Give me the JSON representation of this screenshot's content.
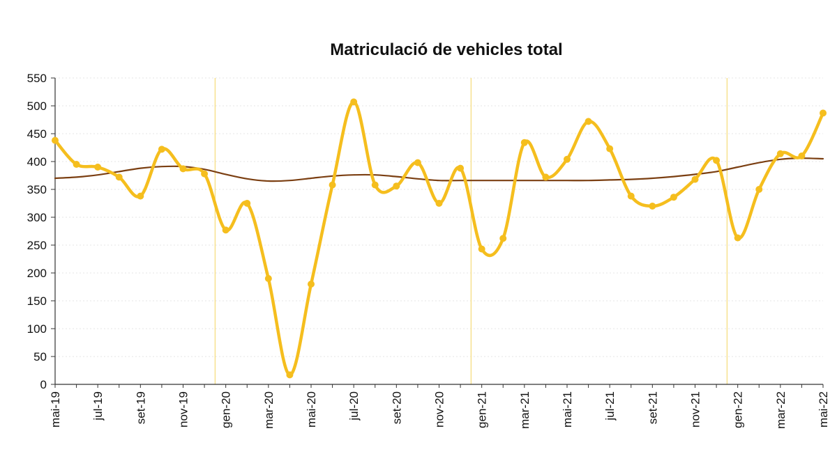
{
  "chart_data": {
    "type": "line",
    "title": "Matriculació de vehicles total",
    "xlabel": "",
    "ylabel": "",
    "ylim": [
      0,
      550
    ],
    "yticks": [
      0,
      50,
      100,
      150,
      200,
      250,
      300,
      350,
      400,
      450,
      500,
      550
    ],
    "x": [
      "mai-19",
      "jun-19",
      "jul-19",
      "ago-19",
      "set-19",
      "oct-19",
      "nov-19",
      "des-19",
      "gen-20",
      "feb-20",
      "mar-20",
      "abr-20",
      "mai-20",
      "jun-20",
      "jul-20",
      "ago-20",
      "set-20",
      "oct-20",
      "nov-20",
      "des-20",
      "gen-21",
      "feb-21",
      "mar-21",
      "abr-21",
      "mai-21",
      "jun-21",
      "jul-21",
      "ago-21",
      "set-21",
      "oct-21",
      "nov-21",
      "des-21",
      "gen-22",
      "feb-22",
      "mar-22",
      "abr-22",
      "mai-22"
    ],
    "xtick_labels": [
      "mai-19",
      "jul-19",
      "set-19",
      "nov-19",
      "gen-20",
      "mar-20",
      "mai-20",
      "jul-20",
      "set-20",
      "nov-20",
      "gen-21",
      "mar-21",
      "mai-21",
      "jul-21",
      "set-21",
      "nov-21",
      "gen-22",
      "mar-22",
      "mai-22"
    ],
    "year_separators_after": [
      "des-19",
      "des-20",
      "des-21"
    ],
    "grid": false,
    "legend": "none",
    "series": [
      {
        "color": "#F5BE1E",
        "markers": true,
        "values": [
          438,
          395,
          390,
          372,
          338,
          422,
          387,
          378,
          277,
          325,
          190,
          17,
          180,
          358,
          507,
          358,
          356,
          398,
          325,
          388,
          243,
          262,
          434,
          372,
          404,
          472,
          423,
          338,
          320,
          336,
          368,
          402,
          263,
          350,
          414,
          410,
          487
        ]
      },
      {
        "color": "#7B3F12",
        "markers": false,
        "values": [
          370,
          372,
          376,
          382,
          388,
          391,
          391,
          386,
          377,
          369,
          365,
          366,
          370,
          374,
          376,
          376,
          373,
          369,
          366,
          366,
          366,
          366,
          366,
          366,
          366,
          366,
          367,
          368,
          370,
          373,
          377,
          382,
          390,
          398,
          404,
          406,
          405
        ]
      }
    ]
  }
}
